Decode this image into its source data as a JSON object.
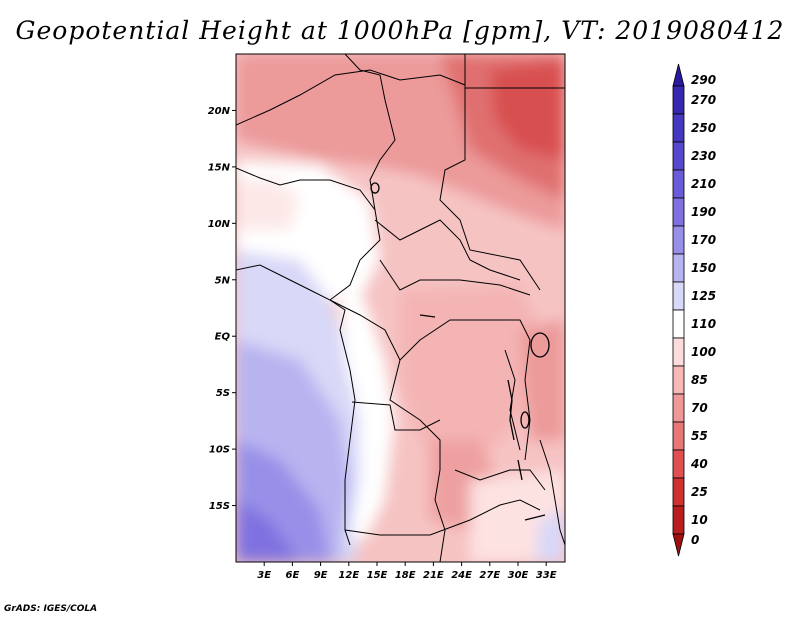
{
  "title": "Geopotential Height at 1000hPa [gpm], VT: 2019080412",
  "footer": "GrADS: IGES/COLA",
  "map": {
    "lat_labels": [
      "20N",
      "15N",
      "10N",
      "5N",
      "EQ",
      "5S",
      "10S",
      "15S"
    ],
    "lat_values": [
      20,
      15,
      10,
      5,
      0,
      -5,
      -10,
      -15
    ],
    "lon_labels": [
      "3E",
      "6E",
      "9E",
      "12E",
      "15E",
      "18E",
      "21E",
      "24E",
      "27E",
      "30E",
      "33E"
    ],
    "lon_values": [
      3,
      6,
      9,
      12,
      15,
      18,
      21,
      24,
      27,
      30,
      33
    ],
    "lon_range": [
      0,
      35
    ],
    "lat_range": [
      -20,
      25
    ]
  },
  "colorbar": {
    "labels": [
      "290",
      "270",
      "250",
      "230",
      "210",
      "190",
      "170",
      "150",
      "125",
      "110",
      "100",
      "85",
      "70",
      "55",
      "40",
      "25",
      "10",
      "0"
    ],
    "colors": [
      "#2a1aa0",
      "#3628b0",
      "#4538c0",
      "#5548cc",
      "#6a5cd8",
      "#7f72e0",
      "#9890e8",
      "#b8b4f0",
      "#d8d8f8",
      "#ffffff",
      "#fcdcdc",
      "#f8b8b8",
      "#f09898",
      "#e87878",
      "#e05050",
      "#d03030",
      "#b81e1e",
      "#a01010"
    ]
  }
}
